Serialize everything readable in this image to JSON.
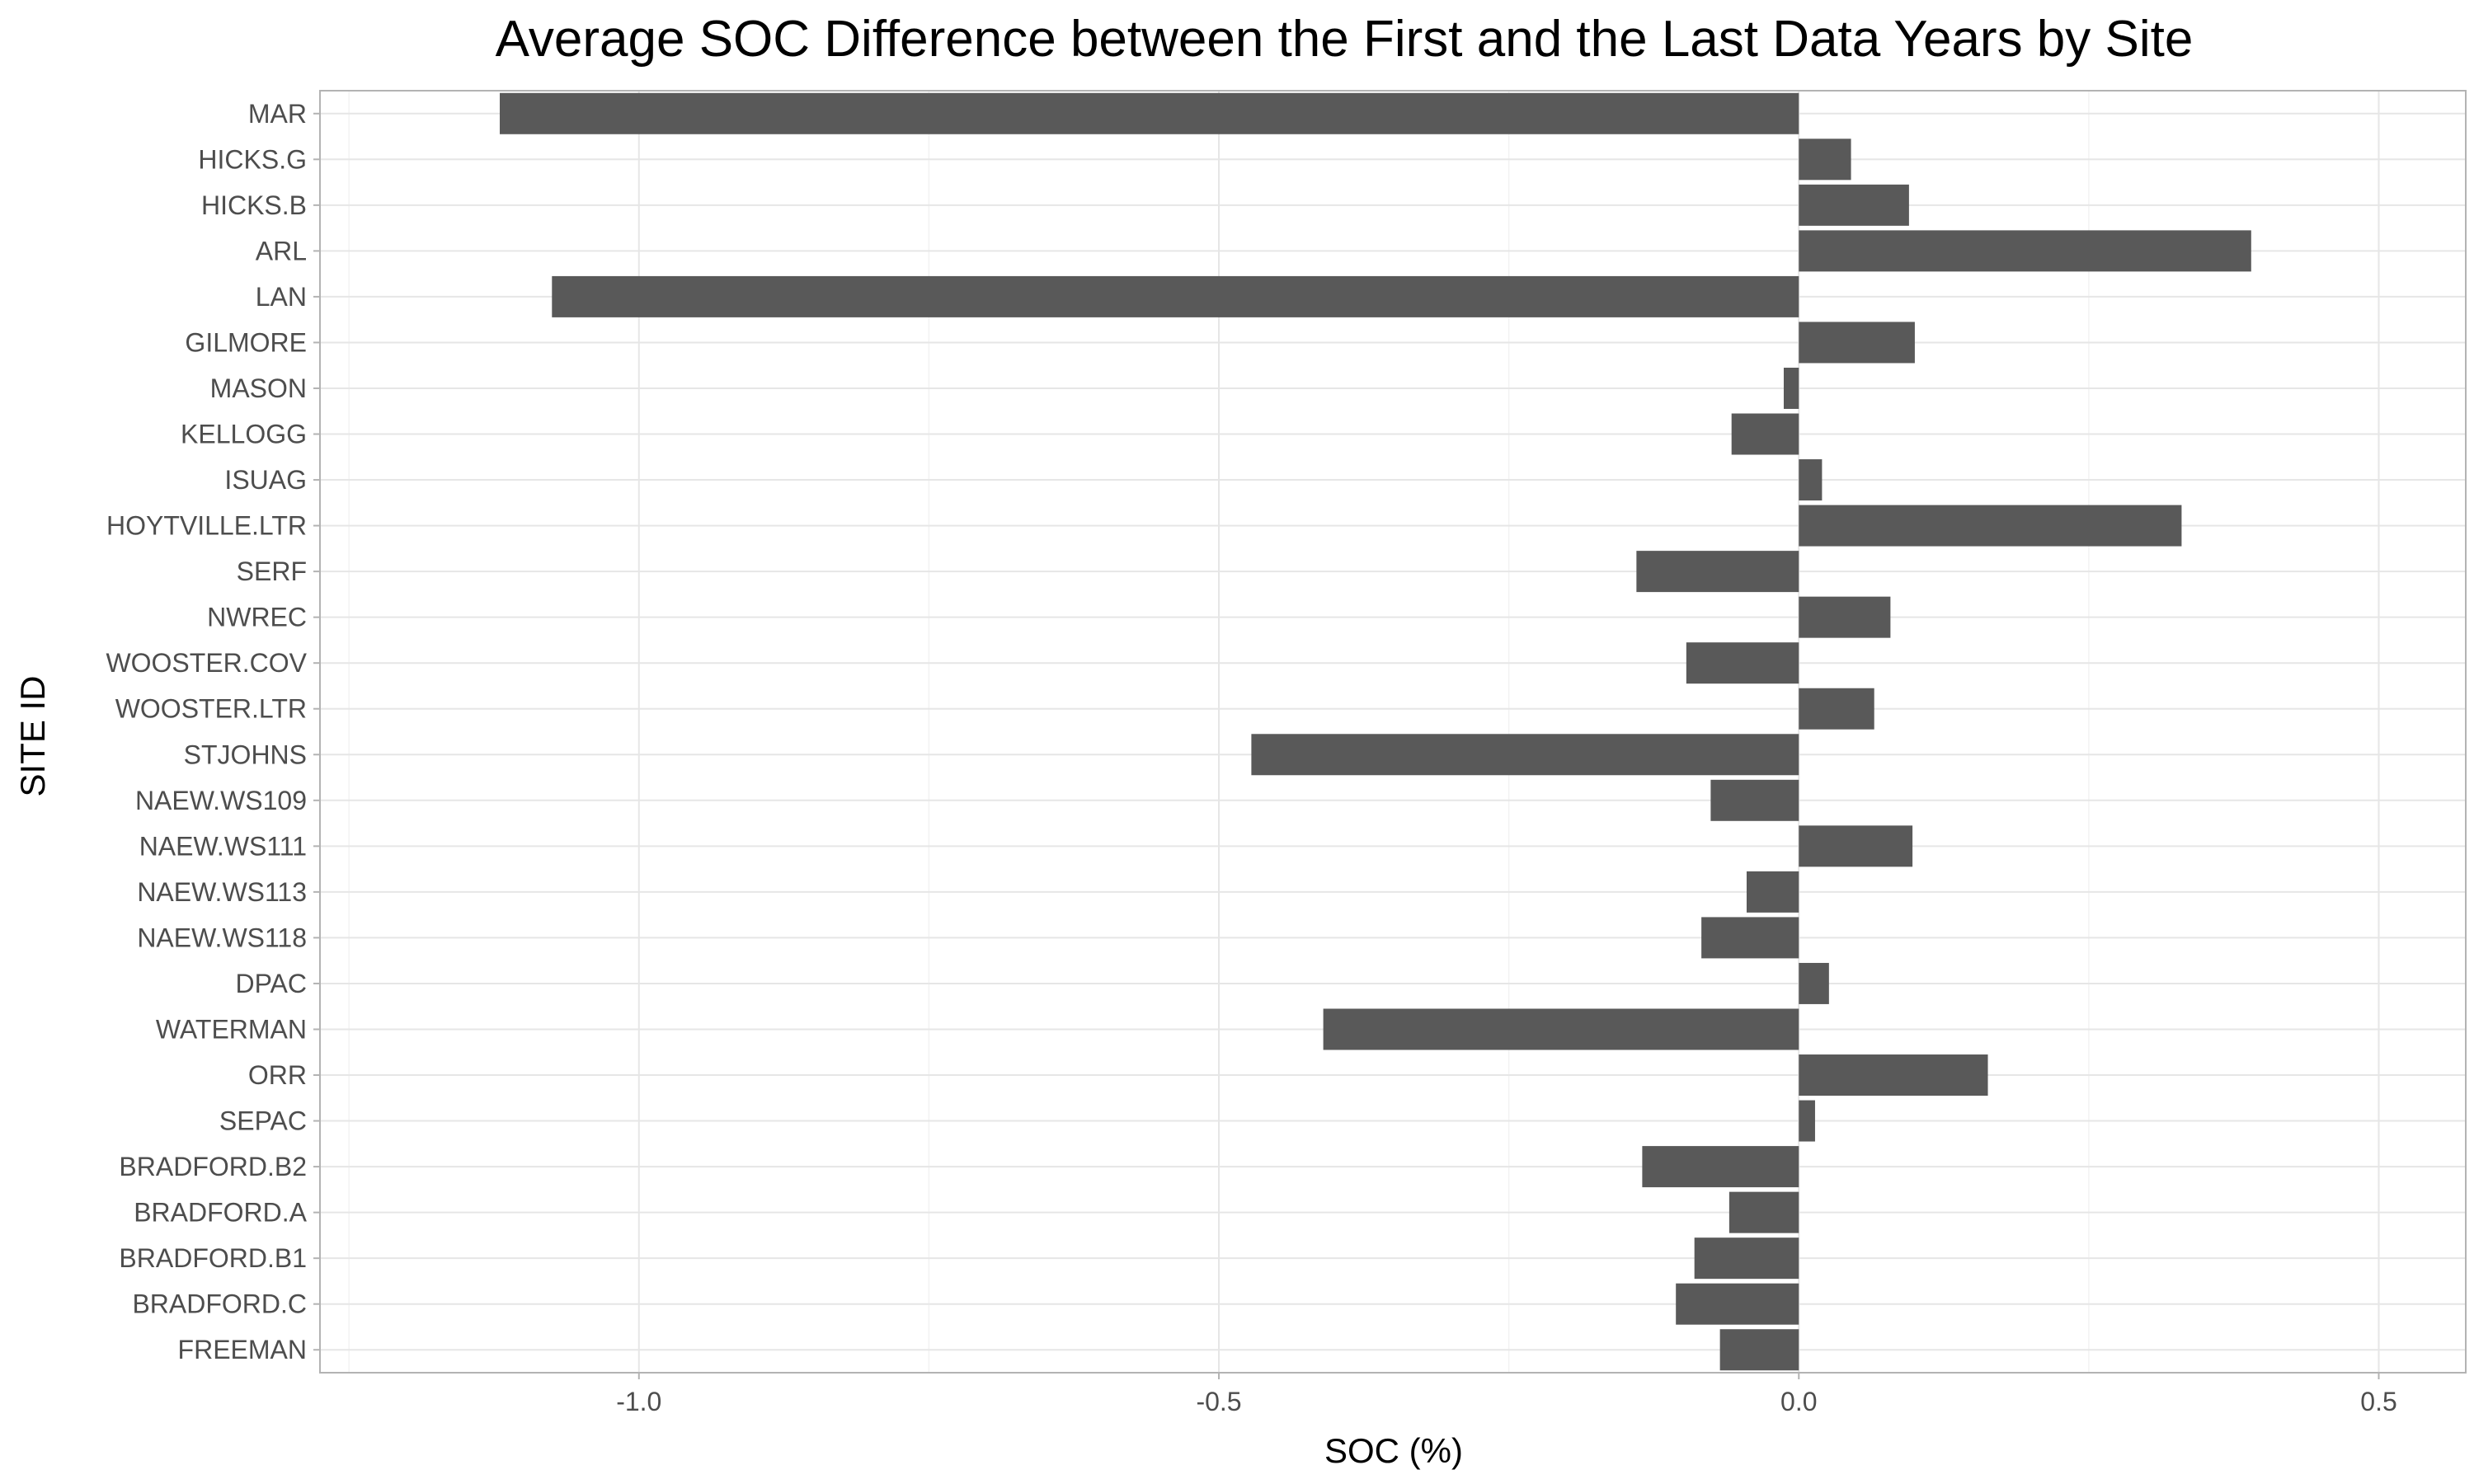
{
  "chart_data": {
    "type": "bar",
    "orientation": "horizontal",
    "title": "Average SOC Difference between the First and the Last Data Years by Site",
    "xlabel": "SOC (%)",
    "ylabel": "SITE ID",
    "xlim": [
      -1.275,
      0.575
    ],
    "x_ticks": [
      -1.0,
      -0.5,
      0.0,
      0.5
    ],
    "x_tick_labels": [
      "-1.0",
      "-0.5",
      "0.0",
      "0.5"
    ],
    "grid": true,
    "bar_color": "#595959",
    "categories": [
      "MAR",
      "HICKS.G",
      "HICKS.B",
      "ARL",
      "LAN",
      "GILMORE",
      "MASON",
      "KELLOGG",
      "ISUAG",
      "HOYTVILLE.LTR",
      "SERF",
      "NWREC",
      "WOOSTER.COV",
      "WOOSTER.LTR",
      "STJOHNS",
      "NAEW.WS109",
      "NAEW.WS111",
      "NAEW.WS113",
      "NAEW.WS118",
      "DPAC",
      "WATERMAN",
      "ORR",
      "SEPAC",
      "BRADFORD.B2",
      "BRADFORD.A",
      "BRADFORD.B1",
      "BRADFORD.C",
      "FREEMAN"
    ],
    "values": [
      -1.12,
      0.045,
      0.095,
      0.39,
      -1.075,
      0.1,
      -0.013,
      -0.058,
      0.02,
      0.33,
      -0.14,
      0.079,
      -0.097,
      0.065,
      -0.472,
      -0.076,
      0.098,
      -0.045,
      -0.084,
      0.026,
      -0.41,
      0.163,
      0.014,
      -0.135,
      -0.06,
      -0.09,
      -0.106,
      -0.068
    ]
  }
}
